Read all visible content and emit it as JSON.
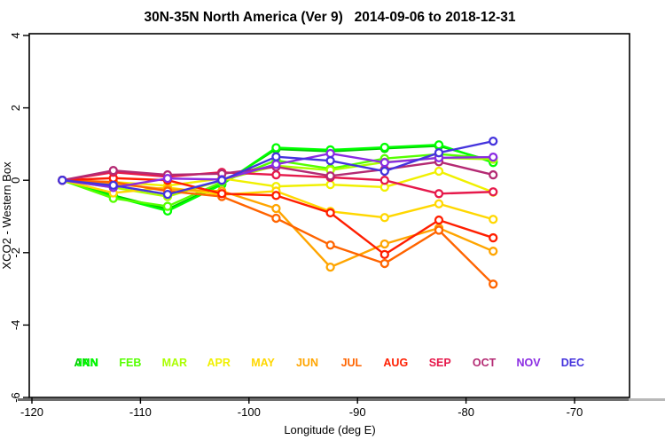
{
  "chart_data": {
    "type": "line",
    "title": "30N-35N North America (Ver 9)   2014-09-06 to 2018-12-31",
    "xlabel": "Longitude (deg E)",
    "ylabel": "XCO2 - Western Box",
    "xlim": [
      -120.3,
      -65.0
    ],
    "ylim": [
      -6.0,
      4.05
    ],
    "x_ticks": [
      -120,
      -110,
      -100,
      -90,
      -80,
      -70
    ],
    "y_ticks": [
      -6,
      -4,
      -2,
      0,
      2,
      4
    ],
    "grid": "off",
    "marker": "open-circle",
    "legend_position": "bottom-inside",
    "x": [
      -117.2,
      -112.5,
      -107.5,
      -102.5,
      -97.5,
      -92.5,
      -87.5,
      -82.5,
      -77.5
    ],
    "series": [
      {
        "name": "ANN",
        "color": "#00C800",
        "legend_slot": 0,
        "values": [
          0.0,
          -0.42,
          -0.8,
          -0.1,
          0.86,
          0.8,
          0.88,
          0.95,
          0.52
        ]
      },
      {
        "name": "JAN",
        "color": "#00FF00",
        "legend_slot": 0,
        "values": [
          0.0,
          -0.45,
          -0.85,
          -0.12,
          0.9,
          0.84,
          0.91,
          0.98,
          0.49
        ]
      },
      {
        "name": "FEB",
        "color": "#55FF00",
        "legend_slot": 1,
        "values": [
          0.0,
          -0.5,
          -0.72,
          -0.05,
          0.55,
          0.32,
          0.6,
          0.72,
          0.61
        ]
      },
      {
        "name": "MAR",
        "color": "#AAFF00",
        "legend_slot": 2,
        "values": [
          0.0,
          -0.2,
          -0.45,
          0.0,
          0.4,
          0.28,
          0.5,
          0.62,
          0.58
        ]
      },
      {
        "name": "APR",
        "color": "#F0F000",
        "legend_slot": 3,
        "values": [
          0.0,
          -0.05,
          -0.15,
          0.05,
          -0.17,
          -0.12,
          -0.19,
          0.25,
          -0.33
        ]
      },
      {
        "name": "MAY",
        "color": "#FFD700",
        "legend_slot": 4,
        "values": [
          0.0,
          -0.35,
          -0.2,
          -0.4,
          -0.3,
          -0.86,
          -1.03,
          -0.65,
          -1.08
        ]
      },
      {
        "name": "JUN",
        "color": "#FFA500",
        "legend_slot": 5,
        "values": [
          0.0,
          -0.1,
          -0.25,
          -0.3,
          -0.78,
          -2.4,
          -1.76,
          -1.32,
          -1.96
        ]
      },
      {
        "name": "JUL",
        "color": "#FF6400",
        "legend_slot": 6,
        "values": [
          0.0,
          -0.05,
          -0.3,
          -0.45,
          -1.05,
          -1.79,
          -2.3,
          -1.38,
          -2.87
        ]
      },
      {
        "name": "AUG",
        "color": "#FF1E00",
        "legend_slot": 7,
        "values": [
          0.0,
          0.06,
          0.0,
          -0.37,
          -0.42,
          -0.9,
          -2.05,
          -1.1,
          -1.59
        ]
      },
      {
        "name": "SEP",
        "color": "#E6194B",
        "legend_slot": 8,
        "values": [
          0.0,
          0.22,
          0.1,
          0.22,
          0.15,
          0.08,
          0.0,
          -0.37,
          -0.32
        ]
      },
      {
        "name": "OCT",
        "color": "#B42A73",
        "legend_slot": 9,
        "values": [
          0.0,
          0.27,
          0.15,
          0.18,
          0.37,
          0.12,
          0.3,
          0.51,
          0.15
        ]
      },
      {
        "name": "NOV",
        "color": "#8A2BE2",
        "legend_slot": 10,
        "values": [
          0.0,
          -0.2,
          0.05,
          0.02,
          0.44,
          0.74,
          0.49,
          0.62,
          0.64
        ]
      },
      {
        "name": "DEC",
        "color": "#4433DD",
        "legend_slot": 11,
        "values": [
          0.0,
          -0.14,
          -0.39,
          0.0,
          0.65,
          0.54,
          0.25,
          0.76,
          1.08
        ]
      }
    ],
    "legend_labels": [
      "ANN",
      "JAN",
      "FEB",
      "MAR",
      "APR",
      "MAY",
      "JUN",
      "JUL",
      "AUG",
      "SEP",
      "OCT",
      "NOV",
      "DEC"
    ]
  }
}
